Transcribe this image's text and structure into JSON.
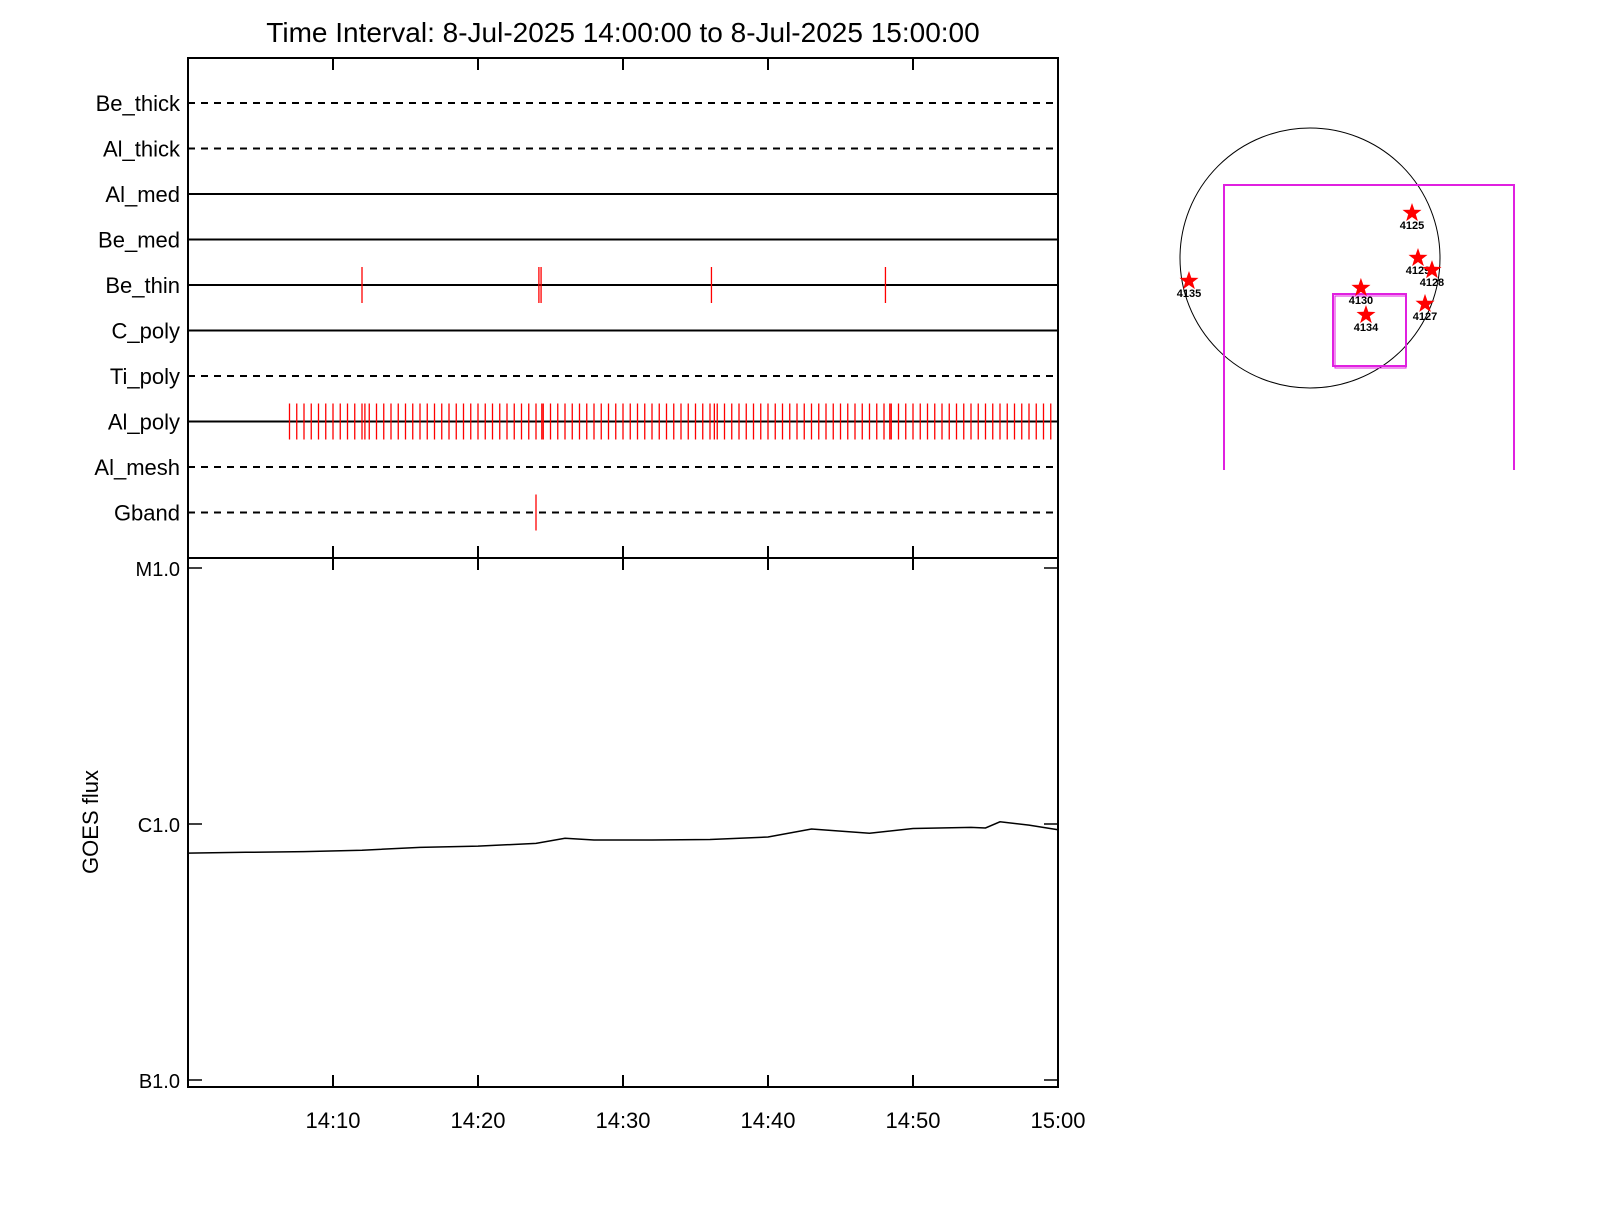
{
  "chart_data": [
    {
      "type": "timeline",
      "title": "Time Interval:  8-Jul-2025 14:00:00 to  8-Jul-2025 15:00:00",
      "xlim": [
        0,
        60
      ],
      "color": "#ff0000",
      "line_styles": [
        "dashed",
        "dashed",
        "solid",
        "solid",
        "solid",
        "solid",
        "dashed",
        "solid",
        "dashed",
        "dashed"
      ],
      "series": [
        {
          "name": "Be_thick",
          "values": []
        },
        {
          "name": "Al_thick",
          "values": []
        },
        {
          "name": "Al_med",
          "values": []
        },
        {
          "name": "Be_med",
          "values": []
        },
        {
          "name": "Be_thin",
          "values": [
            12.0,
            24.2,
            24.35,
            36.1,
            48.1
          ]
        },
        {
          "name": "C_poly",
          "values": []
        },
        {
          "name": "Ti_poly",
          "values": []
        },
        {
          "name": "Al_poly",
          "values": [
            7,
            7.5,
            8,
            8.5,
            9,
            9.5,
            10,
            10.5,
            11,
            11.5,
            12,
            12.2,
            12.5,
            13,
            13.5,
            14,
            14.5,
            15,
            15.5,
            16,
            16.5,
            17,
            17.5,
            18,
            18.5,
            19,
            19.5,
            20,
            20.5,
            21,
            21.5,
            22,
            22.5,
            23,
            23.5,
            24,
            24.4,
            24.5,
            25,
            25.5,
            26,
            26.5,
            27,
            27.5,
            28,
            28.5,
            29,
            29.5,
            30,
            30.5,
            31,
            31.5,
            32,
            32.5,
            33,
            33.5,
            34,
            34.5,
            35,
            35.5,
            36,
            36.3,
            36.5,
            37,
            37.5,
            38,
            38.5,
            39,
            39.5,
            40,
            40.5,
            41,
            41.5,
            42,
            42.5,
            43,
            43.5,
            44,
            44.5,
            45,
            45.5,
            46,
            46.5,
            47,
            47.5,
            48,
            48.4,
            48.5,
            49,
            49.5,
            50,
            50.5,
            51,
            51.5,
            52,
            52.5,
            53,
            53.5,
            54,
            54.5,
            55,
            55.5,
            56,
            56.5,
            57,
            57.5,
            58,
            58.5,
            59,
            59.5
          ]
        },
        {
          "name": "Al_mesh",
          "values": []
        },
        {
          "name": "Gband",
          "values": [
            24.0
          ]
        }
      ]
    },
    {
      "type": "line",
      "ylabel": "GOES flux",
      "log_scale": true,
      "color": "#000000",
      "x": [
        0,
        4,
        8,
        12,
        16,
        20,
        24,
        26,
        28,
        32,
        36,
        40,
        43,
        47,
        50,
        54,
        55,
        56,
        58,
        60
      ],
      "values": [
        7.7e-07,
        7.75e-07,
        7.8e-07,
        7.9e-07,
        8.1e-07,
        8.2e-07,
        8.4e-07,
        8.8e-07,
        8.66e-07,
        8.66e-07,
        8.7e-07,
        8.9e-07,
        9.56e-07,
        9.2e-07,
        9.6e-07,
        9.7e-07,
        9.65e-07,
        1.02e-06,
        9.9e-07,
        9.5e-07
      ],
      "xlim": [
        0,
        60
      ],
      "xticks": [
        {
          "value": 10,
          "label": "14:10"
        },
        {
          "value": 20,
          "label": "14:20"
        },
        {
          "value": 30,
          "label": "14:30"
        },
        {
          "value": 40,
          "label": "14:40"
        },
        {
          "value": 50,
          "label": "14:50"
        },
        {
          "value": 60,
          "label": "15:00"
        }
      ],
      "ylim": [
        1e-07,
        1e-05
      ],
      "yticks": [
        {
          "value": 1e-07,
          "label": "B1.0"
        },
        {
          "value": 1e-06,
          "label": "C1.0"
        },
        {
          "value": 1e-05,
          "label": "M1.0"
        }
      ]
    },
    {
      "type": "scatter",
      "color": "#ff0000",
      "labels": [
        "4125",
        "4129",
        "4128",
        "4135",
        "4130",
        "4134",
        "4127"
      ],
      "x": [
        753,
        797,
        900,
        -893,
        376,
        413,
        849
      ],
      "y": [
        332,
        0,
        -89,
        -170,
        -221,
        -421,
        -339
      ],
      "xlim": [
        -1000,
        1000
      ],
      "ylim": [
        -1000,
        1000
      ]
    }
  ]
}
